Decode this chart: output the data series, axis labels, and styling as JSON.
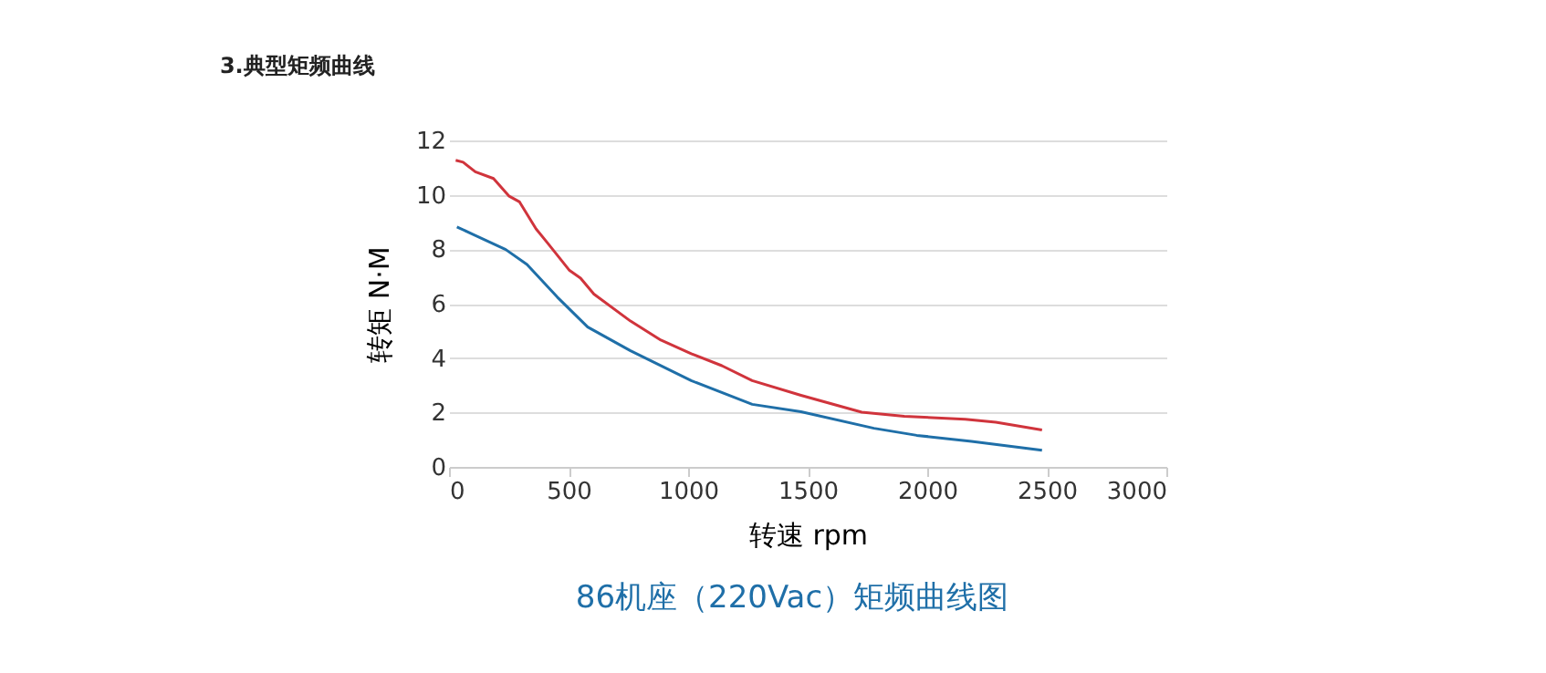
{
  "chart_data": {
    "type": "line",
    "title": "3.典型矩频曲线",
    "xlabel": "转速 rpm",
    "ylabel": "转矩 N·M",
    "xlim": [
      0,
      3000
    ],
    "xticks": [
      0,
      500,
      1000,
      1500,
      2000,
      2500,
      3000
    ],
    "ylim": [
      0,
      12
    ],
    "yticks": [
      0,
      2,
      4,
      6,
      8,
      10,
      12
    ],
    "grid": "y",
    "legend": false,
    "marker": "none",
    "line_style": "solid",
    "series": [
      {
        "color": "#1f6fa8",
        "x": [
          33,
          237,
          326,
          453,
          580,
          759,
          1013,
          1268,
          1472,
          1777,
          1956,
          2185,
          2480
        ],
        "values": [
          8.82,
          7.99,
          7.44,
          6.24,
          5.14,
          4.27,
          3.17,
          2.3,
          2.03,
          1.42,
          1.16,
          0.94,
          0.61
        ]
      },
      {
        "color": "#d0343c",
        "x": [
          28,
          59,
          110,
          186,
          250,
          295,
          364,
          415,
          504,
          550,
          606,
          759,
          886,
          1013,
          1141,
          1268,
          1472,
          1726,
          1904,
          2159,
          2287,
          2480
        ],
        "values": [
          11.27,
          11.2,
          10.85,
          10.6,
          9.96,
          9.74,
          8.75,
          8.2,
          7.22,
          6.94,
          6.35,
          5.36,
          4.66,
          4.16,
          3.72,
          3.17,
          2.63,
          2.01,
          1.86,
          1.75,
          1.64,
          1.36
        ]
      }
    ],
    "annotations": [
      "86机座（220Vac）矩频曲线图"
    ]
  }
}
